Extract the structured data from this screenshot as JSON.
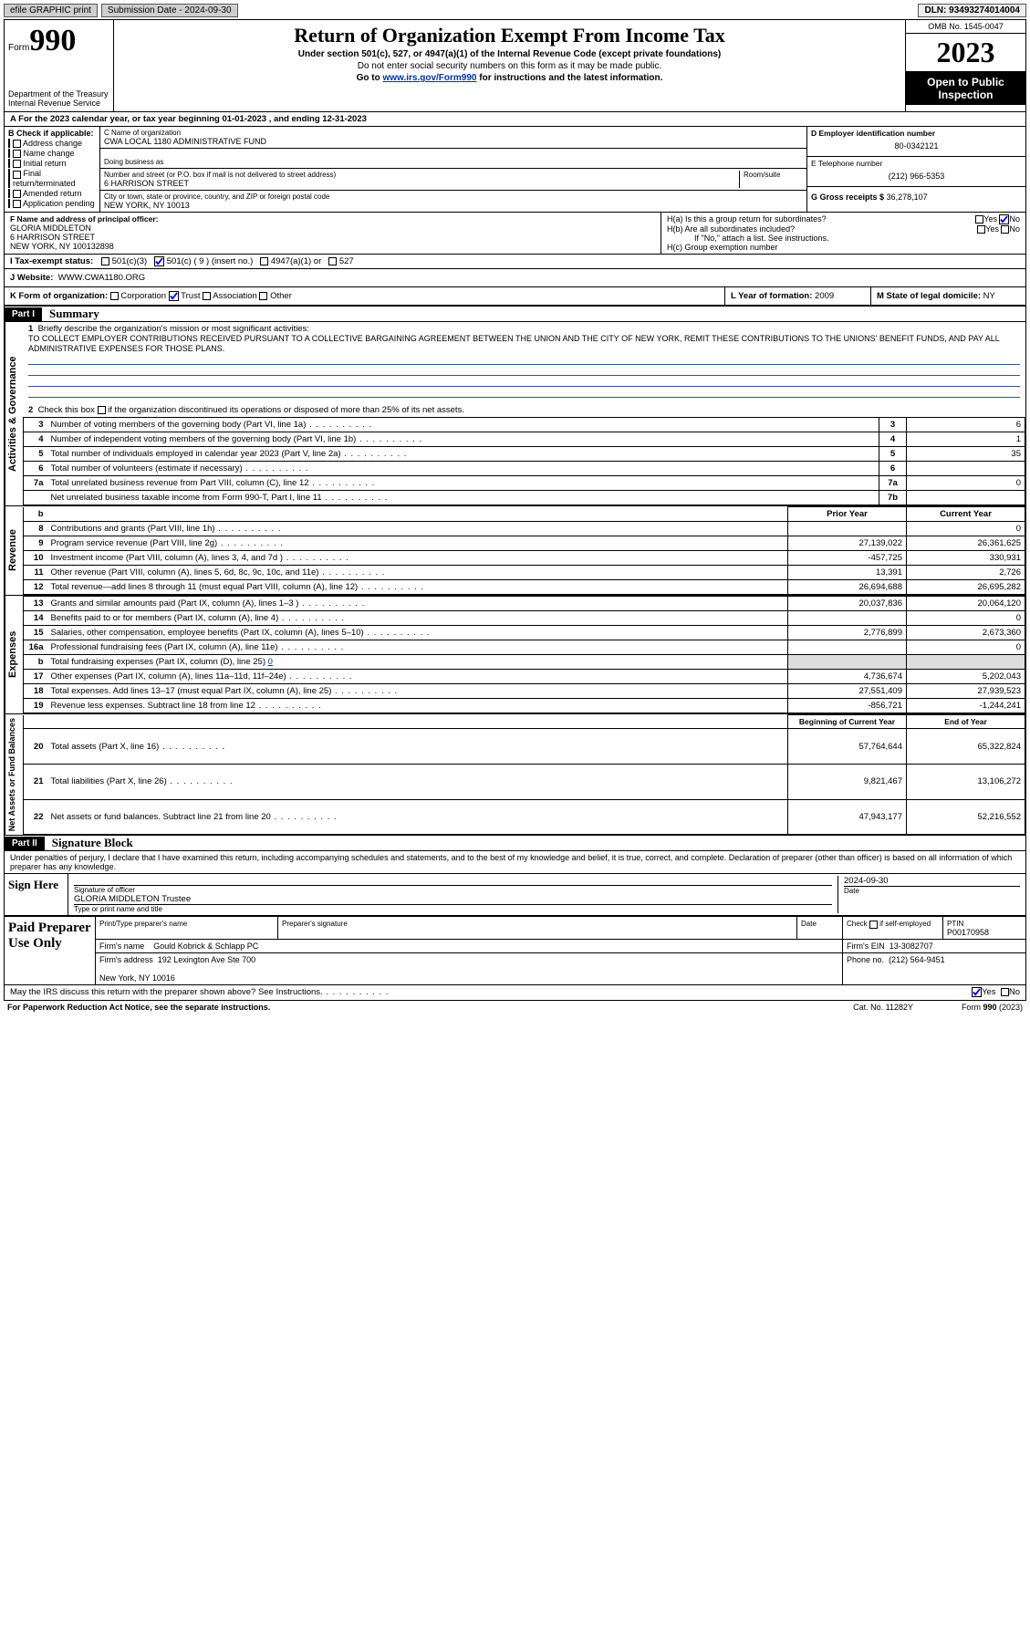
{
  "topbar": {
    "efile": "efile GRAPHIC print",
    "sub_label": "Submission Date - 2024-09-30",
    "dln": "DLN: 93493274014004"
  },
  "header": {
    "form_word": "Form",
    "form_num": "990",
    "dept": "Department of the Treasury\nInternal Revenue Service",
    "title": "Return of Organization Exempt From Income Tax",
    "sub1": "Under section 501(c), 527, or 4947(a)(1) of the Internal Revenue Code (except private foundations)",
    "sub2": "Do not enter social security numbers on this form as it may be made public.",
    "sub3_a": "Go to ",
    "sub3_link": "www.irs.gov/Form990",
    "sub3_b": " for instructions and the latest information.",
    "omb": "OMB No. 1545-0047",
    "year": "2023",
    "public": "Open to Public Inspection"
  },
  "rowA": "A For the 2023 calendar year, or tax year beginning 01-01-2023    , and ending 12-31-2023",
  "boxB": {
    "label": "B Check if applicable:",
    "items": [
      "Address change",
      "Name change",
      "Initial return",
      "Final return/terminated",
      "Amended return",
      "Application pending"
    ]
  },
  "boxC": {
    "label": "C Name of organization",
    "name": "CWA LOCAL 1180 ADMINISTRATIVE FUND",
    "dba_label": "Doing business as",
    "addr_label": "Number and street (or P.O. box if mail is not delivered to street address)",
    "room_label": "Room/suite",
    "addr": "6 HARRISON STREET",
    "city_label": "City or town, state or province, country, and ZIP or foreign postal code",
    "city": "NEW YORK, NY  10013"
  },
  "boxD": {
    "label": "D Employer identification number",
    "value": "80-0342121"
  },
  "boxE": {
    "label": "E Telephone number",
    "value": "(212) 966-5353"
  },
  "boxG": {
    "label": "G Gross receipts $",
    "value": "36,278,107"
  },
  "boxF": {
    "label": "F Name and address of principal officer:",
    "name": "GLORIA MIDDLETON",
    "addr1": "6 HARRISON STREET",
    "addr2": "NEW YORK, NY  100132898"
  },
  "boxH": {
    "a": "H(a)  Is this a group return for subordinates?",
    "b": "H(b)  Are all subordinates included?",
    "note": "If \"No,\" attach a list. See instructions.",
    "c": "H(c)  Group exemption number ",
    "yes": "Yes",
    "no": "No"
  },
  "boxI": {
    "label": "I  Tax-exempt status:",
    "c3": "501(c)(3)",
    "c_paren": "501(c) ( 9 ) (insert no.)",
    "a1": "4947(a)(1) or",
    "s527": "527"
  },
  "boxJ": {
    "label": "J  Website:",
    "value": "WWW.CWA1180.ORG"
  },
  "boxK": {
    "label": "K Form of organization:",
    "corp": "Corporation",
    "trust": "Trust",
    "assoc": "Association",
    "other": "Other"
  },
  "boxL": {
    "label": "L Year of formation:",
    "value": "2009"
  },
  "boxM": {
    "label": "M State of legal domicile:",
    "value": "NY"
  },
  "part1": {
    "hdr": "Part I",
    "title": "Summary",
    "vlabels": [
      "Activities & Governance",
      "Revenue",
      "Expenses",
      "Net Assets or Fund Balances"
    ],
    "l1": "Briefly describe the organization's mission or most significant activities:",
    "mission": "TO COLLECT EMPLOYER CONTRIBUTIONS RECEIVED PURSUANT TO A COLLECTIVE BARGAINING AGREEMENT BETWEEN THE UNION AND THE CITY OF NEW YORK, REMIT THESE CONTRIBUTIONS TO THE UNIONS' BENEFIT FUNDS, AND PAY ALL ADMINISTRATIVE EXPENSES FOR THOSE PLANS.",
    "l2": "Check this box      if the organization discontinued its operations or disposed of more than 25% of its net assets.",
    "rows_gov": [
      {
        "n": "3",
        "d": "Number of voting members of the governing body (Part VI, line 1a)",
        "b": "3",
        "v": "6"
      },
      {
        "n": "4",
        "d": "Number of independent voting members of the governing body (Part VI, line 1b)",
        "b": "4",
        "v": "1"
      },
      {
        "n": "5",
        "d": "Total number of individuals employed in calendar year 2023 (Part V, line 2a)",
        "b": "5",
        "v": "35"
      },
      {
        "n": "6",
        "d": "Total number of volunteers (estimate if necessary)",
        "b": "6",
        "v": ""
      },
      {
        "n": "7a",
        "d": "Total unrelated business revenue from Part VIII, column (C), line 12",
        "b": "7a",
        "v": "0"
      },
      {
        "n": "",
        "d": "Net unrelated business taxable income from Form 990-T, Part I, line 11",
        "b": "7b",
        "v": ""
      }
    ],
    "col_hdrs": {
      "b": "b",
      "prior": "Prior Year",
      "current": "Current Year"
    },
    "rows_rev": [
      {
        "n": "8",
        "d": "Contributions and grants (Part VIII, line 1h)",
        "p": "",
        "c": "0"
      },
      {
        "n": "9",
        "d": "Program service revenue (Part VIII, line 2g)",
        "p": "27,139,022",
        "c": "26,361,625"
      },
      {
        "n": "10",
        "d": "Investment income (Part VIII, column (A), lines 3, 4, and 7d )",
        "p": "-457,725",
        "c": "330,931"
      },
      {
        "n": "11",
        "d": "Other revenue (Part VIII, column (A), lines 5, 6d, 8c, 9c, 10c, and 11e)",
        "p": "13,391",
        "c": "2,726"
      },
      {
        "n": "12",
        "d": "Total revenue—add lines 8 through 11 (must equal Part VIII, column (A), line 12)",
        "p": "26,694,688",
        "c": "26,695,282"
      }
    ],
    "rows_exp": [
      {
        "n": "13",
        "d": "Grants and similar amounts paid (Part IX, column (A), lines 1–3 )",
        "p": "20,037,836",
        "c": "20,064,120"
      },
      {
        "n": "14",
        "d": "Benefits paid to or for members (Part IX, column (A), line 4)",
        "p": "",
        "c": "0"
      },
      {
        "n": "15",
        "d": "Salaries, other compensation, employee benefits (Part IX, column (A), lines 5–10)",
        "p": "2,776,899",
        "c": "2,673,360"
      },
      {
        "n": "16a",
        "d": "Professional fundraising fees (Part IX, column (A), line 11e)",
        "p": "",
        "c": "0"
      }
    ],
    "l16b": "Total fundraising expenses (Part IX, column (D), line 25)",
    "l16b_val": "0",
    "rows_exp2": [
      {
        "n": "17",
        "d": "Other expenses (Part IX, column (A), lines 11a–11d, 11f–24e)",
        "p": "4,736,674",
        "c": "5,202,043"
      },
      {
        "n": "18",
        "d": "Total expenses. Add lines 13–17 (must equal Part IX, column (A), line 25)",
        "p": "27,551,409",
        "c": "27,939,523"
      },
      {
        "n": "19",
        "d": "Revenue less expenses. Subtract line 18 from line 12",
        "p": "-856,721",
        "c": "-1,244,241"
      }
    ],
    "col_hdrs2": {
      "prior": "Beginning of Current Year",
      "current": "End of Year"
    },
    "rows_net": [
      {
        "n": "20",
        "d": "Total assets (Part X, line 16)",
        "p": "57,764,644",
        "c": "65,322,824"
      },
      {
        "n": "21",
        "d": "Total liabilities (Part X, line 26)",
        "p": "9,821,467",
        "c": "13,106,272"
      },
      {
        "n": "22",
        "d": "Net assets or fund balances. Subtract line 21 from line 20",
        "p": "47,943,177",
        "c": "52,216,552"
      }
    ]
  },
  "part2": {
    "hdr": "Part II",
    "title": "Signature Block",
    "perjury": "Under penalties of perjury, I declare that I have examined this return, including accompanying schedules and statements, and to the best of my knowledge and belief, it is true, correct, and complete. Declaration of preparer (other than officer) is based on all information of which preparer has any knowledge.",
    "sign_here": "Sign Here",
    "sig_off": "Signature of officer",
    "date": "Date",
    "date_val": "2024-09-30",
    "officer": "GLORIA MIDDLETON Trustee",
    "type_name": "Type or print name and title",
    "paid": "Paid Preparer Use Only",
    "prep_name_label": "Print/Type preparer's name",
    "prep_sig_label": "Preparer's signature",
    "check_if": "Check        if self-employed",
    "ptin_label": "PTIN",
    "ptin": "P00170958",
    "firm_name_label": "Firm's name",
    "firm_name": "Gould Kobrick & Schlapp PC",
    "firm_ein_label": "Firm's EIN",
    "firm_ein": "13-3082707",
    "firm_addr_label": "Firm's address",
    "firm_addr": "192 Lexington Ave Ste 700",
    "firm_city": "New York, NY  10016",
    "phone_label": "Phone no.",
    "phone": "(212) 564-9451",
    "discuss": "May the IRS discuss this return with the preparer shown above? See Instructions.",
    "yes": "Yes",
    "no": "No"
  },
  "footer": {
    "pra": "For Paperwork Reduction Act Notice, see the separate instructions.",
    "cat": "Cat. No. 11282Y",
    "form": "Form 990 (2023)"
  }
}
